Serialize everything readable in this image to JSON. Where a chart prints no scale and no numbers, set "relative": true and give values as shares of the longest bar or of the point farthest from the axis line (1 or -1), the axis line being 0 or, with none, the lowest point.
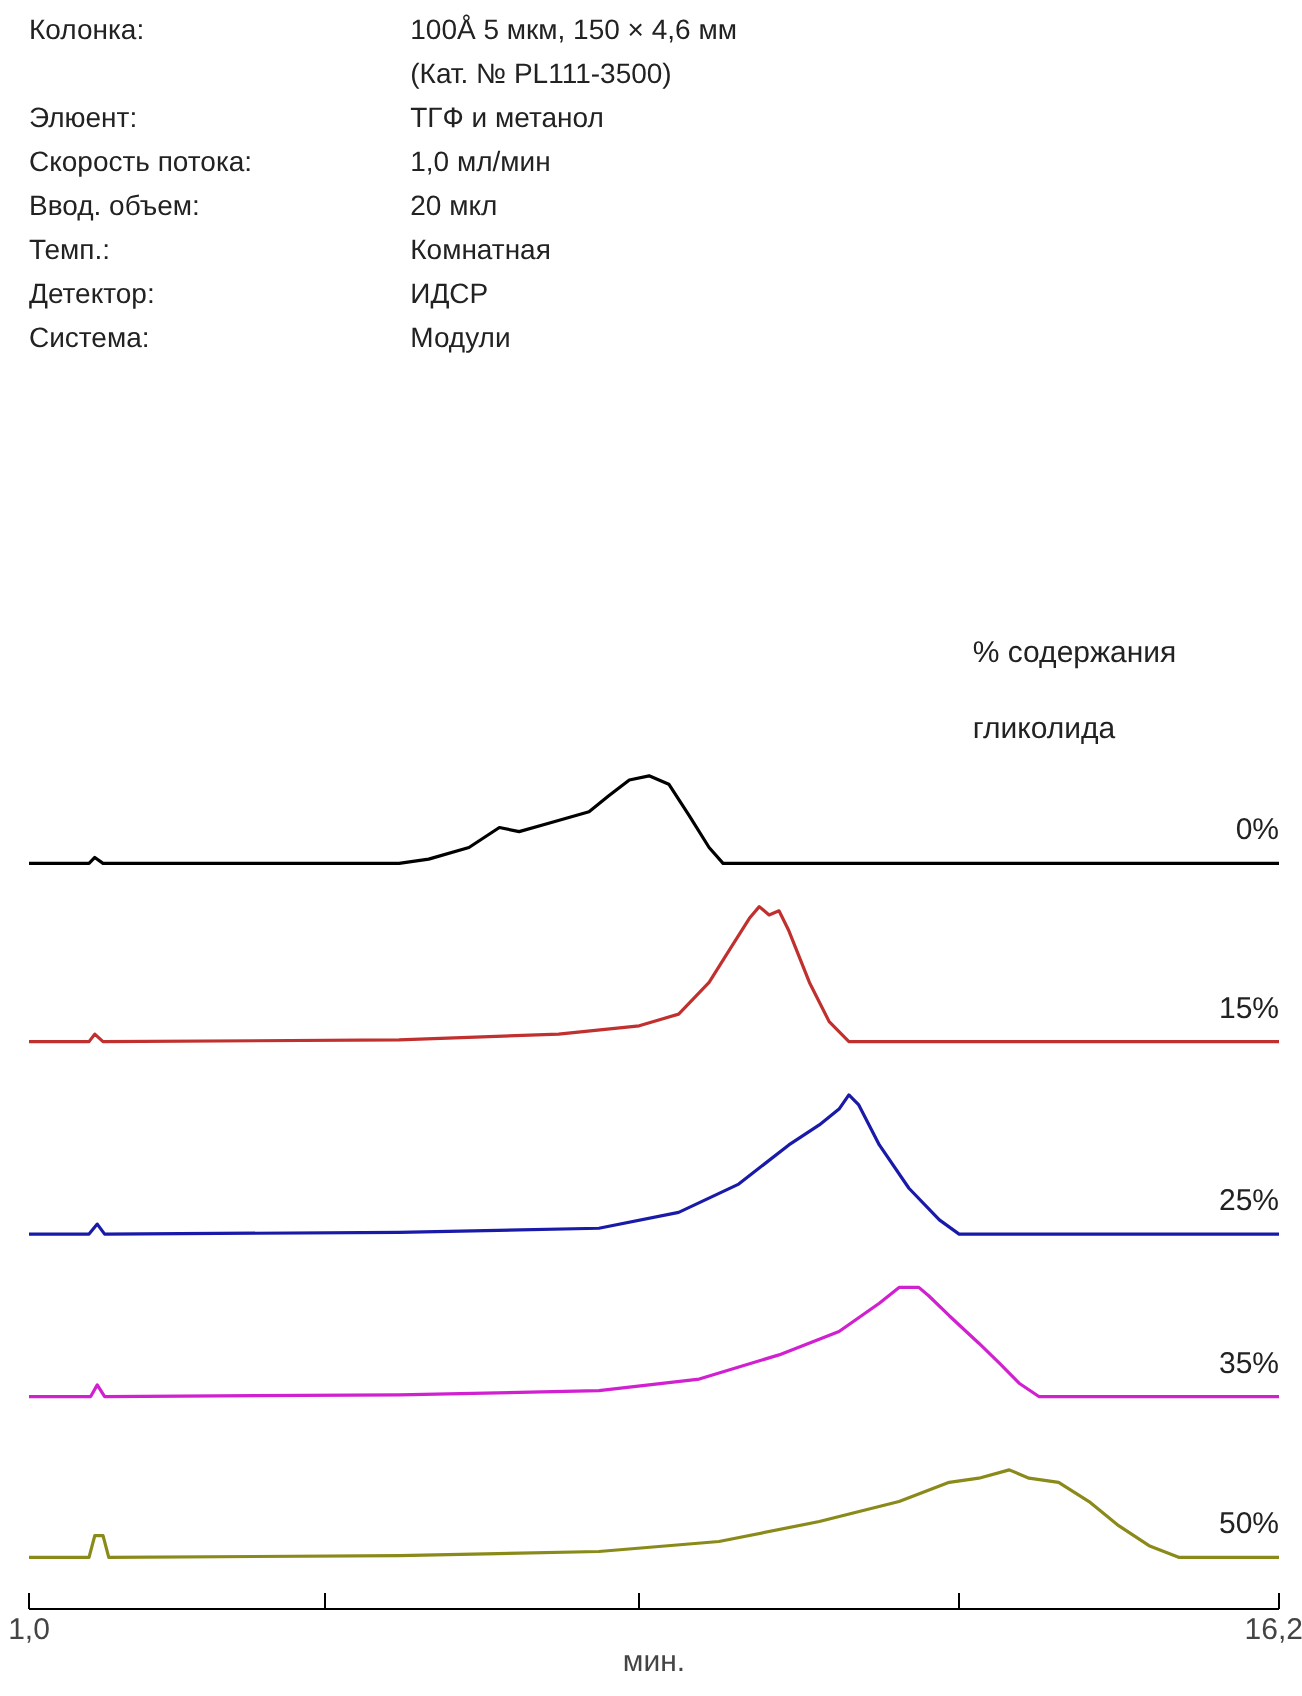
{
  "chart_data": {
    "type": "line",
    "relative": true,
    "xlim": [
      1.0,
      16.2
    ],
    "xlabel": "мин.",
    "legend_title": "% содержания\nгликолида",
    "xticks": [
      {
        "value": 1.0,
        "label": "1,0"
      },
      {
        "value": 4.6,
        "label": null
      },
      {
        "value": 8.42,
        "label": null
      },
      {
        "value": 12.3,
        "label": null
      },
      {
        "value": 16.2,
        "label": "16,2"
      }
    ],
    "annotations": [
      "Колонка:",
      "100Å 5 мкм, 150 × 4,6 мм\n(Кат. № PL111-3500)",
      "Элюент:",
      "ТГФ и метанол",
      "Скорость потока:",
      "1,0 мл/мин",
      "Ввод. объем:",
      "20 мкл",
      "Темп.:",
      "Комнатная",
      "Детектор:",
      "ИДСР",
      "Система:",
      "Модули"
    ],
    "series": [
      {
        "name": "0%",
        "color": "#000000",
        "x": [
          1.0,
          1.73,
          1.8,
          1.9,
          5.5,
          5.86,
          6.35,
          6.72,
          6.96,
          7.32,
          7.81,
          8.05,
          8.3,
          8.54,
          8.78,
          9.03,
          9.27,
          9.44,
          16.2
        ],
        "values": [
          0.895,
          0.895,
          0.902,
          0.895,
          0.895,
          0.9,
          0.914,
          0.938,
          0.933,
          0.943,
          0.957,
          0.976,
          0.995,
          1,
          0.99,
          0.952,
          0.914,
          0.895,
          0.895
        ]
      },
      {
        "name": "15%",
        "color": "#c0302e",
        "x": [
          1.0,
          1.73,
          1.8,
          1.9,
          5.5,
          7.44,
          8.42,
          8.9,
          9.27,
          9.51,
          9.76,
          9.88,
          10.0,
          10.12,
          10.24,
          10.49,
          10.73,
          10.97,
          16.2
        ],
        "values": [
          0.681,
          0.681,
          0.69,
          0.681,
          0.683,
          0.69,
          0.7,
          0.714,
          0.752,
          0.79,
          0.829,
          0.843,
          0.833,
          0.838,
          0.814,
          0.752,
          0.705,
          0.681,
          0.681
        ]
      },
      {
        "name": "25%",
        "color": "#1a1aa8",
        "x": [
          1.0,
          1.73,
          1.83,
          1.92,
          5.5,
          7.93,
          8.9,
          9.63,
          10.24,
          10.61,
          10.85,
          10.97,
          11.09,
          11.34,
          11.7,
          12.07,
          12.31,
          16.2
        ],
        "values": [
          0.45,
          0.45,
          0.462,
          0.45,
          0.452,
          0.457,
          0.476,
          0.51,
          0.557,
          0.581,
          0.6,
          0.617,
          0.605,
          0.557,
          0.505,
          0.467,
          0.45,
          0.45
        ]
      },
      {
        "name": "35%",
        "color": "#d020d0",
        "x": [
          1.0,
          1.75,
          1.83,
          1.92,
          5.5,
          7.93,
          9.15,
          10.12,
          10.85,
          11.34,
          11.58,
          11.82,
          11.94,
          12.19,
          12.55,
          12.8,
          13.04,
          13.28,
          16.2
        ],
        "values": [
          0.255,
          0.255,
          0.269,
          0.255,
          0.257,
          0.262,
          0.276,
          0.305,
          0.333,
          0.367,
          0.386,
          0.386,
          0.376,
          0.352,
          0.319,
          0.295,
          0.271,
          0.255,
          0.255
        ]
      },
      {
        "name": "50%",
        "color": "#8a8a1a",
        "x": [
          1.0,
          1.73,
          1.8,
          1.9,
          1.97,
          5.5,
          7.93,
          9.39,
          10.61,
          11.58,
          12.19,
          12.55,
          12.92,
          13.16,
          13.52,
          13.89,
          14.25,
          14.62,
          14.98,
          16.2
        ],
        "values": [
          0.062,
          0.062,
          0.088,
          0.088,
          0.062,
          0.064,
          0.069,
          0.081,
          0.105,
          0.129,
          0.152,
          0.157,
          0.167,
          0.157,
          0.152,
          0.129,
          0.1,
          0.076,
          0.062,
          0.062
        ]
      }
    ]
  }
}
